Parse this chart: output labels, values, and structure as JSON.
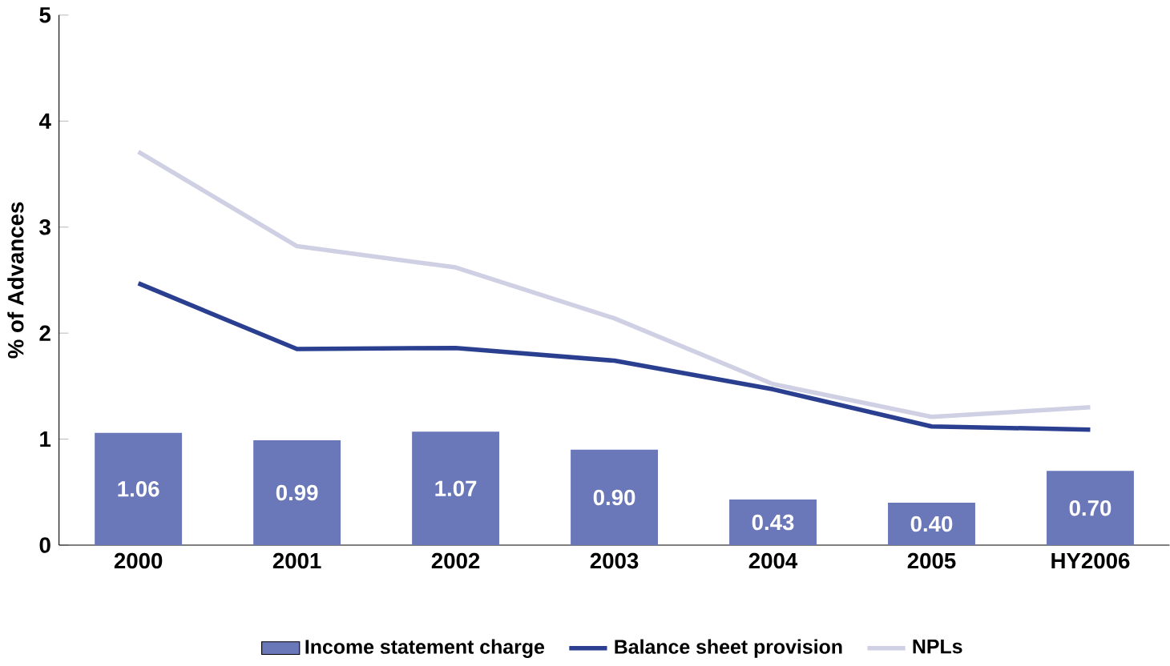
{
  "chart_data": {
    "type": "bar",
    "ylabel": "% of Advances",
    "categories": [
      "2000",
      "2001",
      "2002",
      "2003",
      "2004",
      "2005",
      "HY2006"
    ],
    "series": [
      {
        "name": "Income statement charge",
        "color": "#6a77b8",
        "values": [
          1.06,
          0.99,
          1.07,
          0.9,
          0.43,
          0.4,
          0.7
        ],
        "value_labels": [
          "1.06",
          "0.99",
          "1.07",
          "0.90",
          "0.43",
          "0.40",
          "0.70"
        ]
      },
      {
        "name": "Balance sheet provision",
        "type": "line",
        "color": "#2a3f8f",
        "values": [
          2.47,
          1.85,
          1.86,
          1.74,
          1.47,
          1.12,
          1.09
        ]
      },
      {
        "name": "NPLs",
        "type": "line",
        "color": "#cfd0e3",
        "values": [
          3.71,
          2.82,
          2.62,
          2.14,
          1.52,
          1.21,
          1.3
        ]
      }
    ],
    "ylim": [
      0,
      5
    ],
    "yticks": [
      0,
      1,
      2,
      3,
      4,
      5
    ],
    "legend": "bottom",
    "grid": false
  }
}
